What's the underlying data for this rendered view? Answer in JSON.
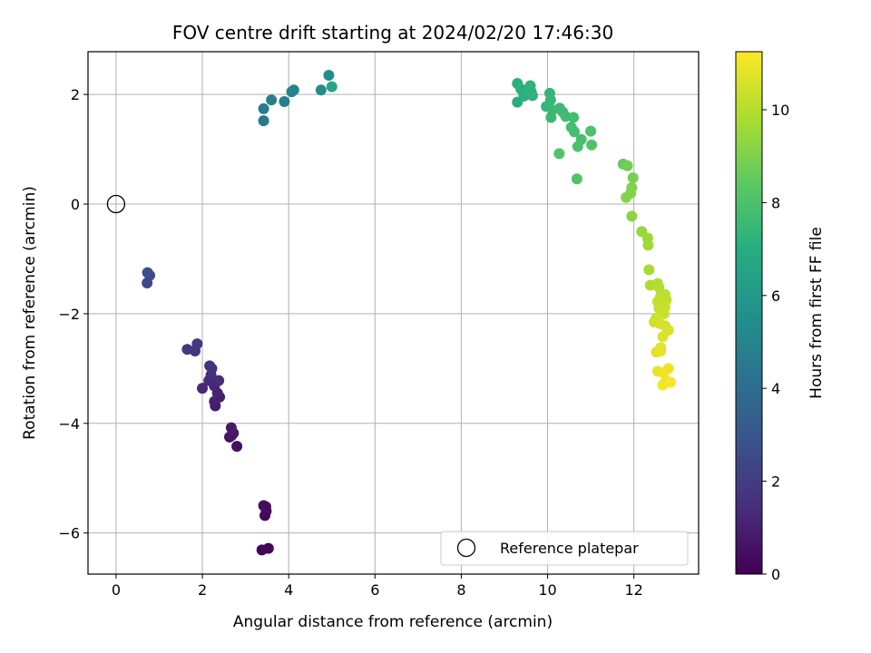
{
  "chart_data": {
    "type": "scatter",
    "title": "FOV centre drift starting at 2024/02/20 17:46:30",
    "xlabel": "Angular distance from reference (arcmin)",
    "ylabel": "Rotation from reference (arcmin)",
    "xlim": [
      -0.65,
      13.5
    ],
    "ylim": [
      -6.75,
      2.78
    ],
    "xticks": [
      0,
      2,
      4,
      6,
      8,
      10,
      12
    ],
    "yticks": [
      -6,
      -4,
      -2,
      0,
      2
    ],
    "grid": true,
    "colormap": "viridis",
    "colorbar": {
      "label": "Hours from first FF file",
      "range": [
        0,
        11.25
      ],
      "ticks": [
        0,
        2,
        4,
        6,
        8,
        10
      ]
    },
    "legend": {
      "location": "lower-right",
      "entries": [
        "Reference platepar"
      ]
    },
    "reference_point": {
      "x": 0,
      "y": 0,
      "marker": "open-circle",
      "color": "#000000"
    },
    "series": [
      {
        "points": [
          {
            "x": 3.38,
            "y": -6.31,
            "c": 0.05
          },
          {
            "x": 3.53,
            "y": -6.28,
            "c": 0.12
          },
          {
            "x": 3.45,
            "y": -5.68,
            "c": 0.2
          },
          {
            "x": 3.48,
            "y": -5.6,
            "c": 0.28
          },
          {
            "x": 3.42,
            "y": -5.5,
            "c": 0.35
          },
          {
            "x": 3.47,
            "y": -5.52,
            "c": 0.42
          },
          {
            "x": 2.8,
            "y": -4.42,
            "c": 0.5
          },
          {
            "x": 2.63,
            "y": -4.25,
            "c": 0.58
          },
          {
            "x": 2.68,
            "y": -4.22,
            "c": 0.65
          },
          {
            "x": 2.72,
            "y": -4.18,
            "c": 0.72
          },
          {
            "x": 2.67,
            "y": -4.08,
            "c": 0.8
          },
          {
            "x": 2.3,
            "y": -3.68,
            "c": 0.88
          },
          {
            "x": 2.4,
            "y": -3.52,
            "c": 0.95
          },
          {
            "x": 2.28,
            "y": -3.6,
            "c": 1.02
          },
          {
            "x": 2.35,
            "y": -3.45,
            "c": 1.1
          },
          {
            "x": 2.28,
            "y": -3.32,
            "c": 1.18
          },
          {
            "x": 2.0,
            "y": -3.36,
            "c": 1.25
          },
          {
            "x": 2.15,
            "y": -3.22,
            "c": 1.32
          },
          {
            "x": 2.38,
            "y": -3.22,
            "c": 1.4
          },
          {
            "x": 2.2,
            "y": -3.12,
            "c": 1.48
          },
          {
            "x": 2.22,
            "y": -3.0,
            "c": 1.55
          },
          {
            "x": 2.17,
            "y": -2.95,
            "c": 1.62
          },
          {
            "x": 1.83,
            "y": -2.68,
            "c": 1.7
          },
          {
            "x": 1.65,
            "y": -2.65,
            "c": 1.78
          },
          {
            "x": 1.88,
            "y": -2.55,
            "c": 1.85
          },
          {
            "x": 0.72,
            "y": -1.44,
            "c": 2.45
          },
          {
            "x": 0.78,
            "y": -1.3,
            "c": 2.55
          },
          {
            "x": 0.73,
            "y": -1.25,
            "c": 2.62
          },
          {
            "x": 3.42,
            "y": 1.52,
            "c": 4.55
          },
          {
            "x": 3.42,
            "y": 1.74,
            "c": 4.62
          },
          {
            "x": 3.6,
            "y": 1.9,
            "c": 4.75
          },
          {
            "x": 3.9,
            "y": 1.87,
            "c": 4.85
          },
          {
            "x": 4.07,
            "y": 2.05,
            "c": 4.95
          },
          {
            "x": 4.12,
            "y": 2.08,
            "c": 5.05
          },
          {
            "x": 4.75,
            "y": 2.08,
            "c": 5.4
          },
          {
            "x": 4.93,
            "y": 2.35,
            "c": 5.6
          },
          {
            "x": 5.0,
            "y": 2.14,
            "c": 6.6
          },
          {
            "x": 9.3,
            "y": 1.86,
            "c": 7.0
          },
          {
            "x": 9.3,
            "y": 2.2,
            "c": 7.05
          },
          {
            "x": 9.38,
            "y": 2.1,
            "c": 7.1
          },
          {
            "x": 9.45,
            "y": 1.97,
            "c": 7.15
          },
          {
            "x": 9.62,
            "y": 2.05,
            "c": 7.2
          },
          {
            "x": 9.6,
            "y": 2.16,
            "c": 7.25
          },
          {
            "x": 9.65,
            "y": 1.98,
            "c": 7.3
          },
          {
            "x": 10.05,
            "y": 2.02,
            "c": 7.35
          },
          {
            "x": 9.97,
            "y": 1.78,
            "c": 7.4
          },
          {
            "x": 10.07,
            "y": 1.9,
            "c": 7.45
          },
          {
            "x": 10.12,
            "y": 1.72,
            "c": 7.5
          },
          {
            "x": 10.08,
            "y": 1.58,
            "c": 7.55
          },
          {
            "x": 10.28,
            "y": 1.75,
            "c": 7.6
          },
          {
            "x": 10.35,
            "y": 1.68,
            "c": 7.65
          },
          {
            "x": 10.42,
            "y": 1.6,
            "c": 7.7
          },
          {
            "x": 10.6,
            "y": 1.58,
            "c": 7.75
          },
          {
            "x": 10.55,
            "y": 1.4,
            "c": 7.8
          },
          {
            "x": 10.62,
            "y": 1.32,
            "c": 7.85
          },
          {
            "x": 10.78,
            "y": 1.18,
            "c": 7.9
          },
          {
            "x": 10.7,
            "y": 1.05,
            "c": 7.95
          },
          {
            "x": 11.0,
            "y": 1.33,
            "c": 8.0
          },
          {
            "x": 11.02,
            "y": 1.08,
            "c": 8.05
          },
          {
            "x": 10.27,
            "y": 0.92,
            "c": 8.1
          },
          {
            "x": 10.68,
            "y": 0.46,
            "c": 8.15
          },
          {
            "x": 11.75,
            "y": 0.73,
            "c": 8.6
          },
          {
            "x": 11.85,
            "y": 0.7,
            "c": 8.75
          },
          {
            "x": 11.98,
            "y": 0.48,
            "c": 8.9
          },
          {
            "x": 11.95,
            "y": 0.3,
            "c": 9.0
          },
          {
            "x": 11.93,
            "y": 0.2,
            "c": 9.08
          },
          {
            "x": 11.82,
            "y": 0.12,
            "c": 9.15
          },
          {
            "x": 11.95,
            "y": -0.22,
            "c": 9.25
          },
          {
            "x": 12.18,
            "y": -0.5,
            "c": 9.45
          },
          {
            "x": 12.32,
            "y": -0.62,
            "c": 9.55
          },
          {
            "x": 12.33,
            "y": -0.75,
            "c": 9.62
          },
          {
            "x": 12.35,
            "y": -1.2,
            "c": 9.75
          },
          {
            "x": 12.38,
            "y": -1.48,
            "c": 9.85
          },
          {
            "x": 12.55,
            "y": -1.45,
            "c": 9.92
          },
          {
            "x": 12.58,
            "y": -1.52,
            "c": 9.98
          },
          {
            "x": 12.62,
            "y": -1.68,
            "c": 10.05
          },
          {
            "x": 12.72,
            "y": -1.65,
            "c": 10.1
          },
          {
            "x": 12.75,
            "y": -1.75,
            "c": 10.15
          },
          {
            "x": 12.55,
            "y": -1.78,
            "c": 10.2
          },
          {
            "x": 12.58,
            "y": -1.9,
            "c": 10.25
          },
          {
            "x": 12.72,
            "y": -1.88,
            "c": 10.3
          },
          {
            "x": 12.7,
            "y": -2.0,
            "c": 10.35
          },
          {
            "x": 12.52,
            "y": -2.08,
            "c": 10.4
          },
          {
            "x": 12.47,
            "y": -2.15,
            "c": 10.45
          },
          {
            "x": 12.6,
            "y": -2.18,
            "c": 10.5
          },
          {
            "x": 12.72,
            "y": -2.22,
            "c": 10.55
          },
          {
            "x": 12.8,
            "y": -2.3,
            "c": 10.6
          },
          {
            "x": 12.67,
            "y": -2.42,
            "c": 10.65
          },
          {
            "x": 12.62,
            "y": -2.62,
            "c": 10.7
          },
          {
            "x": 12.52,
            "y": -2.7,
            "c": 10.75
          },
          {
            "x": 12.62,
            "y": -2.68,
            "c": 10.8
          },
          {
            "x": 12.55,
            "y": -3.05,
            "c": 10.9
          },
          {
            "x": 12.68,
            "y": -3.08,
            "c": 10.95
          },
          {
            "x": 12.8,
            "y": -3.0,
            "c": 11.0
          },
          {
            "x": 12.75,
            "y": -3.22,
            "c": 11.05
          },
          {
            "x": 12.67,
            "y": -3.3,
            "c": 11.1
          },
          {
            "x": 12.85,
            "y": -3.25,
            "c": 11.15
          }
        ]
      }
    ]
  }
}
